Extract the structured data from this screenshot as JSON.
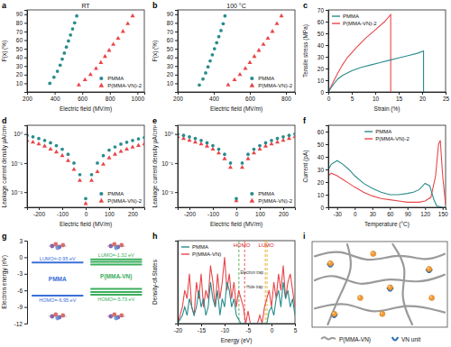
{
  "chart_data": [
    {
      "panel_label": "a",
      "type": "scatter",
      "annotation": "RT",
      "xlabel": "Electric field (MV/m)",
      "ylabel": "F(x) (%)",
      "xlim": [
        200,
        1050
      ],
      "xticks": [
        200,
        400,
        600,
        800,
        1000
      ],
      "ylim": [
        0,
        95
      ],
      "yticks": [
        10,
        20,
        30,
        40,
        50,
        60,
        70,
        80,
        90
      ],
      "legend": "bottom right",
      "series": [
        {
          "name": "PMMA",
          "color": "#2a8c8c",
          "marker": "circle",
          "x": [
            365,
            395,
            420,
            440,
            455,
            470,
            485,
            500,
            515,
            530,
            545,
            560
          ],
          "values": [
            10,
            17,
            24,
            31,
            38,
            45,
            52,
            59,
            66,
            73,
            80,
            88
          ]
        },
        {
          "name": "P(MMA-VN)-2",
          "color": "#e8474b",
          "marker": "triangle",
          "x": [
            575,
            620,
            660,
            700,
            735,
            765,
            795,
            825,
            860,
            895,
            930,
            965
          ],
          "values": [
            8,
            14,
            20,
            27,
            34,
            41,
            48,
            55,
            62,
            70,
            79,
            88
          ]
        }
      ]
    },
    {
      "panel_label": "b",
      "type": "scatter",
      "annotation": "100 °C",
      "xlabel": "Electric field (MV/m)",
      "ylabel": "F(x) (%)",
      "xlim": [
        200,
        850
      ],
      "xticks": [
        200,
        400,
        600,
        800
      ],
      "ylim": [
        0,
        95
      ],
      "yticks": [
        10,
        20,
        30,
        40,
        50,
        60,
        70,
        80,
        90
      ],
      "legend": "bottom right",
      "series": [
        {
          "name": "PMMA",
          "color": "#2a8c8c",
          "marker": "circle",
          "x": [
            320,
            340,
            355,
            368,
            380,
            392,
            404,
            416,
            428,
            440,
            452,
            462
          ],
          "values": [
            8,
            15,
            22,
            29,
            36,
            43,
            50,
            57,
            64,
            71,
            79,
            88
          ]
        },
        {
          "name": "P(MMA-VN)-2",
          "color": "#e8474b",
          "marker": "triangle",
          "x": [
            480,
            515,
            545,
            575,
            600,
            625,
            650,
            675,
            700,
            725,
            750,
            775
          ],
          "values": [
            8,
            14,
            20,
            27,
            34,
            41,
            48,
            55,
            62,
            70,
            79,
            88
          ]
        }
      ]
    },
    {
      "panel_label": "c",
      "type": "line",
      "xlabel": "Strain (%)",
      "ylabel": "Tensile stress (MPa)",
      "xlim": [
        0,
        25
      ],
      "xticks": [
        0,
        5,
        10,
        15,
        20,
        25
      ],
      "ylim": [
        0,
        70
      ],
      "yticks": [
        0,
        10,
        20,
        30,
        40,
        50,
        60,
        70
      ],
      "legend": "top left",
      "series": [
        {
          "name": "PMMA",
          "color": "#2a8c8c",
          "x": [
            0,
            1,
            2,
            3,
            5,
            7,
            9,
            11,
            13,
            15,
            17,
            19,
            20.3,
            20.3
          ],
          "values": [
            0,
            6,
            11,
            14,
            18,
            21,
            23,
            25,
            27,
            29,
            31,
            33,
            35,
            0
          ]
        },
        {
          "name": "P(MMA-VN)-2",
          "color": "#e8474b",
          "x": [
            0,
            1,
            2,
            3,
            4,
            6,
            8,
            10,
            12,
            13.3,
            13.3
          ],
          "values": [
            0,
            8,
            16,
            23,
            29,
            38,
            46,
            53,
            60,
            66,
            0
          ]
        }
      ]
    },
    {
      "panel_label": "d",
      "type": "scatter",
      "log": "y",
      "xlabel": "Electric field (MV/m)",
      "ylabel": "Leakage current density µA/cm²",
      "xlim": [
        -250,
        250
      ],
      "xticks": [
        -200,
        -100,
        0,
        100,
        200
      ],
      "ylim": [
        0.003,
        2
      ],
      "yticks": [
        {
          "value": 0.01,
          "label": "10⁻²"
        },
        {
          "value": 0.1,
          "label": "10⁻¹"
        },
        {
          "value": 1,
          "label": "10⁰"
        }
      ],
      "legend": "bottom right",
      "x": [
        -250,
        -225,
        -200,
        -175,
        -150,
        -125,
        -100,
        -75,
        -50,
        -25,
        0,
        25,
        50,
        75,
        100,
        125,
        150,
        175,
        200,
        225,
        250
      ],
      "series": [
        {
          "name": "PMMA",
          "color": "#2a8c8c",
          "marker": "circle",
          "values": [
            0.9,
            0.8,
            0.7,
            0.6,
            0.5,
            0.4,
            0.3,
            0.2,
            0.1,
            0.04,
            0.006,
            0.04,
            0.1,
            0.18,
            0.28,
            0.36,
            0.45,
            0.52,
            0.6,
            0.68,
            0.75
          ]
        },
        {
          "name": "P(MMA-VN)-2",
          "color": "#e8474b",
          "marker": "triangle",
          "values": [
            0.6,
            0.52,
            0.45,
            0.38,
            0.3,
            0.24,
            0.18,
            0.12,
            0.06,
            0.025,
            0.004,
            0.025,
            0.05,
            0.09,
            0.15,
            0.2,
            0.25,
            0.3,
            0.35,
            0.4,
            0.45
          ]
        }
      ]
    },
    {
      "panel_label": "e",
      "type": "scatter",
      "log": "y",
      "xlabel": "Electric field (MV/m)",
      "ylabel": "Leakage current density µA/cm²",
      "xlim": [
        -250,
        250
      ],
      "xticks": [
        -200,
        -100,
        0,
        100,
        200
      ],
      "ylim": [
        0.003,
        2
      ],
      "yticks": [
        {
          "value": 0.01,
          "label": "10⁻²"
        },
        {
          "value": 0.1,
          "label": "10⁻¹"
        },
        {
          "value": 1,
          "label": "10⁰"
        }
      ],
      "legend": "bottom right",
      "x": [
        -250,
        -225,
        -200,
        -175,
        -150,
        -125,
        -100,
        -75,
        -50,
        -25,
        0,
        25,
        50,
        75,
        100,
        125,
        150,
        175,
        200,
        225,
        250
      ],
      "series": [
        {
          "name": "PMMA",
          "color": "#2a8c8c",
          "marker": "circle",
          "values": [
            1.0,
            0.9,
            0.8,
            0.7,
            0.6,
            0.5,
            0.4,
            0.3,
            0.2,
            0.1,
            0.006,
            0.1,
            0.2,
            0.3,
            0.4,
            0.5,
            0.6,
            0.7,
            0.8,
            0.9,
            1.0
          ]
        },
        {
          "name": "P(MMA-VN)-2",
          "color": "#e8474b",
          "marker": "triangle",
          "values": [
            0.8,
            0.7,
            0.6,
            0.52,
            0.45,
            0.38,
            0.3,
            0.22,
            0.14,
            0.07,
            0.005,
            0.07,
            0.14,
            0.22,
            0.3,
            0.38,
            0.45,
            0.52,
            0.6,
            0.7,
            0.8
          ]
        }
      ]
    },
    {
      "panel_label": "f",
      "type": "line",
      "xlabel": "Temperature (°C)",
      "ylabel": "Current (pA)",
      "xlim": [
        -45,
        155
      ],
      "xticks": [
        -30,
        0,
        30,
        60,
        90,
        120,
        150
      ],
      "ylim": [
        0,
        65
      ],
      "yticks": [
        0,
        10,
        20,
        30,
        40,
        50,
        60
      ],
      "legend": "top",
      "series": [
        {
          "name": "PMMA",
          "color": "#2a8c8c",
          "x": [
            -45,
            -40,
            -30,
            -20,
            -10,
            0,
            15,
            30,
            45,
            60,
            75,
            90,
            100,
            110,
            120,
            128,
            135,
            140,
            150
          ],
          "values": [
            30,
            34,
            37,
            34,
            30,
            25,
            19,
            15,
            12,
            10,
            10,
            11,
            12,
            14,
            19,
            17,
            6,
            1,
            0
          ]
        },
        {
          "name": "P(MMA-VN)-2",
          "color": "#e8474b",
          "x": [
            -45,
            -40,
            -30,
            -20,
            -10,
            0,
            15,
            30,
            45,
            60,
            75,
            90,
            100,
            110,
            120,
            130,
            138,
            143,
            146,
            150,
            155
          ],
          "values": [
            25,
            27,
            25,
            22,
            19,
            16,
            12,
            9,
            7,
            6,
            5,
            4,
            4,
            4,
            5,
            8,
            25,
            50,
            53,
            25,
            2
          ]
        }
      ]
    },
    {
      "panel_label": "g",
      "type": "energy_levels",
      "ylabel": "Electron energy (eV)",
      "ylim": [
        -12,
        3
      ],
      "yticks": [
        -12,
        -9,
        -6,
        -3,
        0,
        3
      ],
      "tick_labels": "y",
      "series": [
        {
          "name": "PMMA",
          "color": "#3a6fd8",
          "levels": [
            -0.95,
            -6.95
          ],
          "lumo_label": "LUMO=-0.95 eV",
          "homo_label": "HOMO=-6.95 eV"
        },
        {
          "name": "P(MMA-VN)",
          "color": "#3cae5c",
          "levels": [
            -0.4,
            -0.85,
            -1.32,
            -5.73,
            -6.3,
            -6.8
          ],
          "lumo_label": "LUMO=-1.32 eV",
          "homo_label": "HOMO=-5.73 eV"
        }
      ]
    },
    {
      "panel_label": "h",
      "type": "line",
      "xlabel": "Energy (eV)",
      "ylabel": "Density-of-States",
      "xlim": [
        -20,
        5
      ],
      "xticks": [
        -20,
        -15,
        -10,
        -5,
        0,
        5
      ],
      "ylim": [
        0,
        10
      ],
      "tick_labels": "x",
      "legend": "top left",
      "x": [
        -20,
        -19.5,
        -19,
        -18.5,
        -18,
        -17.5,
        -17,
        -16.5,
        -16,
        -15.5,
        -15,
        -14.5,
        -14,
        -13.5,
        -13,
        -12.5,
        -12,
        -11.5,
        -11,
        -10.5,
        -10,
        -9.5,
        -9,
        -8.5,
        -8,
        -7.5,
        -7,
        -6.5,
        -6,
        -5.5,
        -5,
        -4.5,
        -4,
        -3.5,
        -3,
        -2.5,
        -2,
        -1.5,
        -1,
        -0.5,
        0,
        0.5,
        1,
        1.5,
        2,
        2.5,
        3,
        3.5,
        4,
        4.5,
        5
      ],
      "series": [
        {
          "name": "PMMA",
          "color": "#2a8c8c",
          "values": [
            0,
            0.5,
            1,
            2,
            1,
            3,
            2,
            1,
            2,
            4,
            2,
            3,
            1,
            2,
            5,
            3,
            2,
            4,
            1,
            3,
            2,
            5,
            4,
            2,
            3,
            1,
            0.5,
            0,
            0,
            0,
            0,
            0,
            0,
            0,
            0,
            0,
            0,
            0,
            0,
            1.5,
            2,
            1,
            3,
            4,
            2,
            5,
            3,
            4,
            2,
            3,
            1
          ]
        },
        {
          "name": "P(MMA-VN)",
          "color": "#e8474b",
          "values": [
            0,
            1,
            2,
            4,
            3,
            6,
            2,
            1,
            5,
            3,
            6,
            2,
            4,
            3,
            7,
            5,
            2,
            6,
            3,
            5,
            8,
            4,
            6,
            3,
            5,
            2,
            4,
            3,
            2,
            0,
            1.5,
            0,
            0,
            0,
            0,
            1,
            0,
            2,
            3,
            4,
            2,
            5,
            3,
            6,
            4,
            7,
            3,
            5,
            6,
            4,
            2
          ]
        }
      ],
      "reference_lines": [
        {
          "label": "HOMO",
          "trap": "Hole trap",
          "values": [
            -6.95,
            -5.73
          ],
          "colors": [
            "#4caf50",
            "#e8474b"
          ],
          "line_style": "dashed"
        },
        {
          "label": "LUMO",
          "trap": "Electron trap",
          "values": [
            -1.32,
            -0.95
          ],
          "colors": [
            "#f0a030",
            "#d4c020"
          ],
          "line_style": "dashed"
        }
      ]
    },
    {
      "panel_label": "i",
      "type": "schematic",
      "legend": "bottom",
      "series": [
        {
          "name": "P(MMA-VN)",
          "color": "#9a9a9a"
        },
        {
          "name": "VN unit",
          "color": "#2f6fb0"
        }
      ]
    }
  ]
}
